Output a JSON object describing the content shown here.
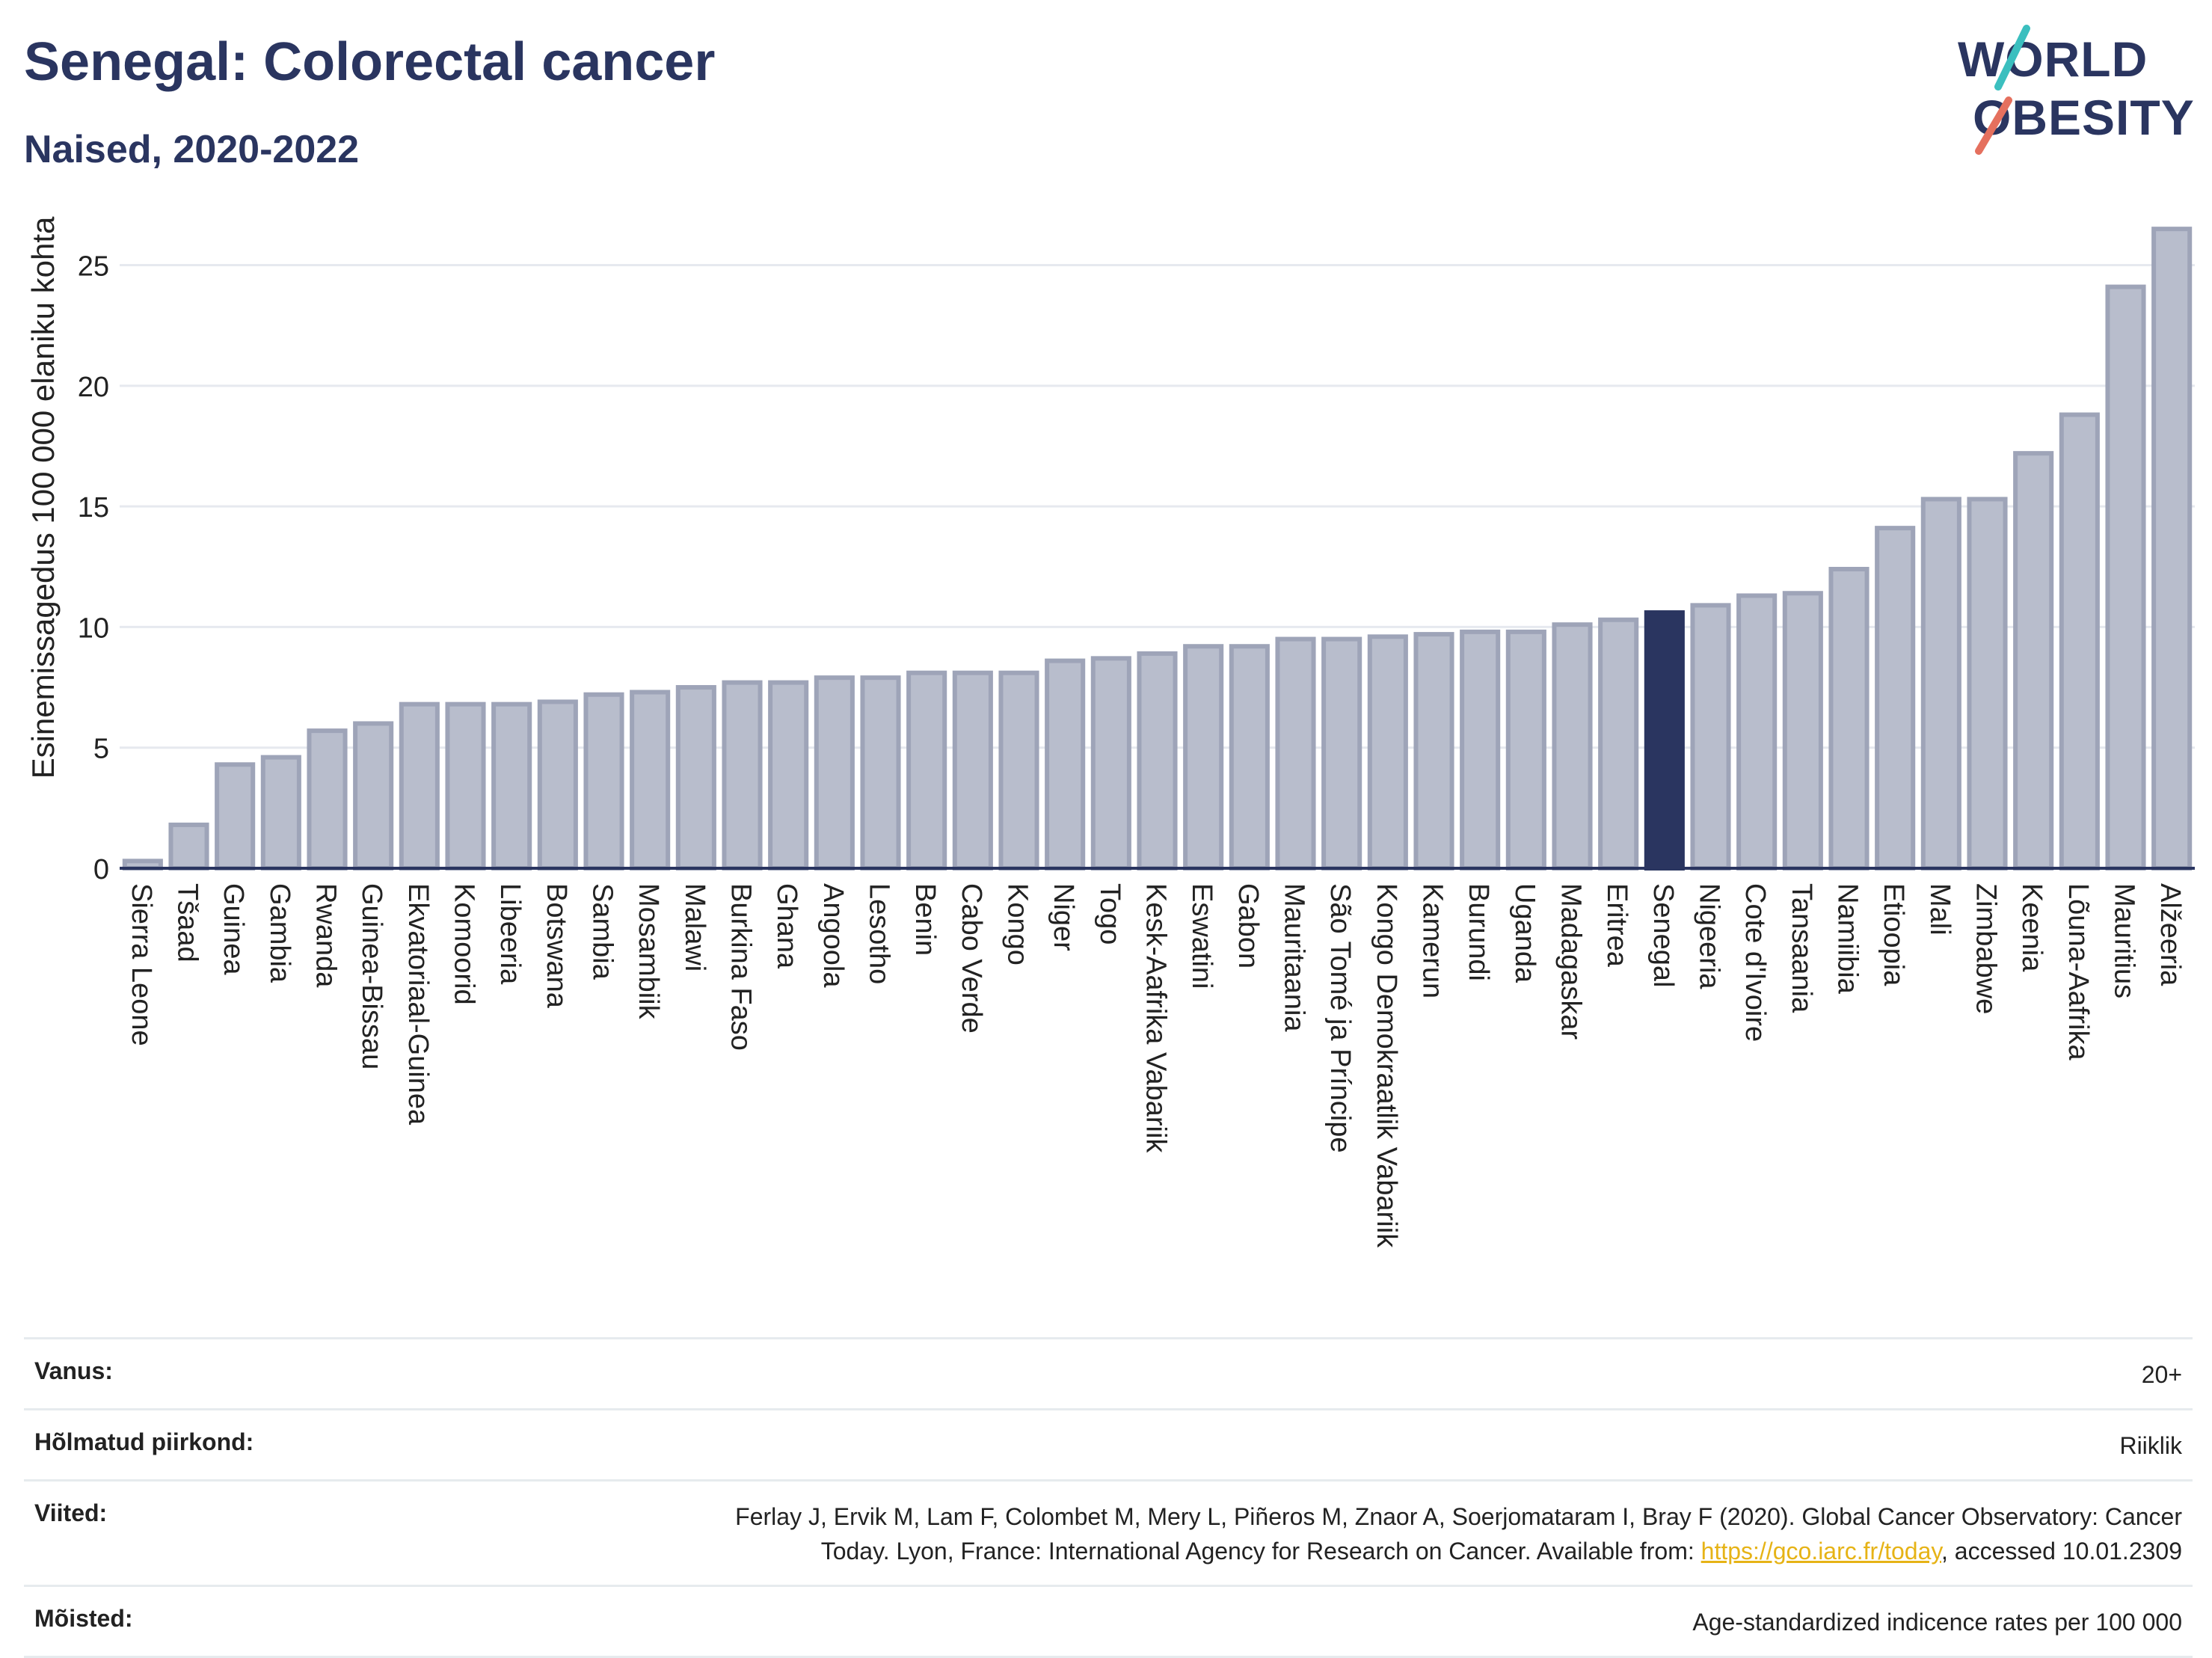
{
  "title": "Senegal: Colorectal cancer",
  "subtitle": "Naised, 2020-2022",
  "logo": {
    "line1": "WORLD",
    "line2": "OBESITY"
  },
  "chart_data": {
    "type": "bar",
    "ylabel": "Esinemissagedus 100 000 elaniku kohta",
    "ylim": [
      0,
      27
    ],
    "yticks": [
      0,
      5,
      10,
      15,
      20,
      25
    ],
    "grid": true,
    "highlight": "Senegal",
    "colors": {
      "bar": "#b8bdcc",
      "bar_edge": "#9ea4b8",
      "highlight": "#2a3560",
      "grid": "#e6e9ef",
      "axis": "#2a3560"
    },
    "categories": [
      "Sierra Leone",
      "Tšaad",
      "Guinea",
      "Gambia",
      "Rwanda",
      "Guinea-Bissau",
      "Ekvatoriaal-Guinea",
      "Komoorid",
      "Libeeria",
      "Botswana",
      "Sambia",
      "Mosambiik",
      "Malawi",
      "Burkina Faso",
      "Ghana",
      "Angoola",
      "Lesotho",
      "Benin",
      "Cabo Verde",
      "Kongo",
      "Niger",
      "Togo",
      "Kesk-Aafrika Vabariik",
      "Eswatini",
      "Gabon",
      "Mauritaania",
      "São Tomé ja Príncipe",
      "Kongo Demokraatlik Vabariik",
      "Kamerun",
      "Burundi",
      "Uganda",
      "Madagaskar",
      "Eritrea",
      "Senegal",
      "Nigeeria",
      "Cote d'Ivoire",
      "Tansaania",
      "Namiibia",
      "Etioopia",
      "Mali",
      "Zimbabwe",
      "Keenia",
      "Lõuna-Aafrika",
      "Mauritius",
      "Alžeeria"
    ],
    "values": [
      0.3,
      1.8,
      4.3,
      4.6,
      5.7,
      6.0,
      6.8,
      6.8,
      6.8,
      6.9,
      7.2,
      7.3,
      7.5,
      7.7,
      7.7,
      7.9,
      7.9,
      8.1,
      8.1,
      8.1,
      8.6,
      8.7,
      8.9,
      9.2,
      9.2,
      9.5,
      9.5,
      9.6,
      9.7,
      9.8,
      9.8,
      10.1,
      10.3,
      10.6,
      10.9,
      11.3,
      11.4,
      12.4,
      14.1,
      15.3,
      15.3,
      17.2,
      18.8,
      24.1,
      26.5
    ]
  },
  "footer": {
    "rows": [
      {
        "label": "Vanus:",
        "value": "20+"
      },
      {
        "label": "Hõlmatud piirkond:",
        "value": "Riiklik"
      },
      {
        "label": "Viited:",
        "value_line1": "Ferlay J, Ervik M, Lam F, Colombet M, Mery L, Piñeros M, Znaor A, Soerjomataram I, Bray F (2020). Global Cancer Observatory: Cancer",
        "value_pre": "Today. Lyon, France: International Agency for Research on Cancer. Available from: ",
        "link": "https://gco.iarc.fr/today",
        "value_post": ", accessed 10.01.2309"
      },
      {
        "label": "Mõisted:",
        "value": "Age-standardized indicence rates per 100 000"
      }
    ]
  }
}
